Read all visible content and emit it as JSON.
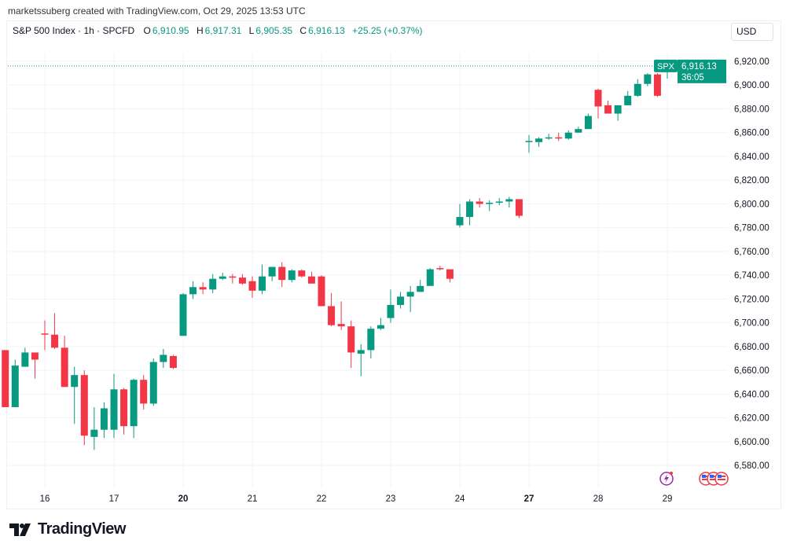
{
  "credit": "marketssuberg created with TradingView.com, Oct 29, 2025 13:53 UTC",
  "legend": {
    "symbol": "S&P 500 Index · 1h · SPCFD",
    "open_label": "O",
    "open": "6,910.95",
    "high_label": "H",
    "high": "6,917.31",
    "low_label": "L",
    "low": "6,905.35",
    "close_label": "C",
    "close": "6,916.13",
    "change": "+25.25 (+0.37%)"
  },
  "currency": "USD",
  "price_tag": {
    "symbol": "SPX",
    "price": "6,916.13",
    "countdown": "36:05"
  },
  "brand": "TradingView",
  "colors": {
    "up": "#089981",
    "down": "#f23645",
    "grid": "#f0f3fa",
    "event": "#9c27b0"
  },
  "events": [
    {
      "icon": "lightning-icon"
    },
    {
      "icon": "us-flag-icon"
    },
    {
      "icon": "us-flag-icon"
    },
    {
      "icon": "us-flag-icon"
    }
  ],
  "chart_data": {
    "type": "candlestick",
    "interval": "1h",
    "ylim": [
      6570,
      6930
    ],
    "yticks": [
      "6,580.00",
      "6,600.00",
      "6,620.00",
      "6,640.00",
      "6,660.00",
      "6,680.00",
      "6,700.00",
      "6,720.00",
      "6,740.00",
      "6,760.00",
      "6,780.00",
      "6,800.00",
      "6,820.00",
      "6,840.00",
      "6,860.00",
      "6,880.00",
      "6,900.00",
      "6,920.00"
    ],
    "grid": true,
    "days": [
      {
        "label": "",
        "bold": false,
        "candles": [
          [
            6677,
            6677,
            6629,
            6629
          ],
          [
            6629,
            6669,
            6629,
            6664
          ],
          [
            6663,
            6679,
            6663,
            6675
          ],
          [
            6675,
            6675,
            6653,
            6669
          ]
        ]
      },
      {
        "label": "16",
        "bold": false,
        "candles": [
          [
            6691,
            6702,
            6677,
            6690
          ],
          [
            6690,
            6708,
            6678,
            6679
          ],
          [
            6679,
            6689,
            6646,
            6646
          ],
          [
            6646,
            6663,
            6615,
            6656
          ],
          [
            6656,
            6660,
            6597,
            6605
          ],
          [
            6604,
            6629,
            6593,
            6610
          ],
          [
            6610,
            6633,
            6603,
            6628
          ]
        ]
      },
      {
        "label": "17",
        "bold": false,
        "candles": [
          [
            6610,
            6657,
            6603,
            6644
          ],
          [
            6644,
            6645,
            6606,
            6613
          ],
          [
            6613,
            6653,
            6603,
            6652
          ],
          [
            6652,
            6656,
            6627,
            6632
          ],
          [
            6632,
            6670,
            6630,
            6667
          ],
          [
            6667,
            6678,
            6662,
            6673
          ],
          [
            6672,
            6673,
            6661,
            6662
          ]
        ]
      },
      {
        "label": "20",
        "bold": true,
        "candles": [
          [
            6689,
            6725,
            6689,
            6724
          ],
          [
            6724,
            6735,
            6720,
            6730
          ],
          [
            6730,
            6734,
            6724,
            6728
          ],
          [
            6728,
            6741,
            6725,
            6737
          ],
          [
            6737,
            6742,
            6736,
            6739
          ],
          [
            6739,
            6741,
            6733,
            6738
          ],
          [
            6738,
            6741,
            6732,
            6733
          ]
        ]
      },
      {
        "label": "21",
        "bold": false,
        "candles": [
          [
            6735,
            6739,
            6721,
            6727
          ],
          [
            6727,
            6749,
            6724,
            6739
          ],
          [
            6739,
            6747,
            6735,
            6747
          ],
          [
            6747,
            6751,
            6730,
            6736
          ],
          [
            6736,
            6745,
            6734,
            6744
          ],
          [
            6744,
            6745,
            6738,
            6739
          ],
          [
            6739,
            6743,
            6733,
            6733
          ]
        ]
      },
      {
        "label": "22",
        "bold": false,
        "candles": [
          [
            6739,
            6740,
            6714,
            6714
          ],
          [
            6714,
            6725,
            6697,
            6698
          ],
          [
            6699,
            6718,
            6694,
            6697
          ],
          [
            6697,
            6702,
            6662,
            6675
          ],
          [
            6674,
            6682,
            6655,
            6677
          ],
          [
            6677,
            6697,
            6670,
            6695
          ],
          [
            6695,
            6704,
            6694,
            6698
          ]
        ]
      },
      {
        "label": "23",
        "bold": false,
        "candles": [
          [
            6704,
            6728,
            6700,
            6715
          ],
          [
            6715,
            6726,
            6712,
            6722
          ],
          [
            6722,
            6731,
            6709,
            6726
          ],
          [
            6726,
            6736,
            6726,
            6731
          ],
          [
            6731,
            6746,
            6731,
            6745
          ],
          [
            6746,
            6748,
            6744,
            6745
          ],
          [
            6745,
            6745,
            6734,
            6737
          ]
        ]
      },
      {
        "label": "24",
        "bold": false,
        "candles": [
          [
            6782,
            6800,
            6780,
            6789
          ],
          [
            6789,
            6804,
            6782,
            6802
          ],
          [
            6802,
            6805,
            6797,
            6800
          ],
          [
            6800,
            6803,
            6794,
            6801
          ],
          [
            6801,
            6805,
            6799,
            6802
          ],
          [
            6802,
            6806,
            6797,
            6804
          ],
          [
            6804,
            6804,
            6788,
            6790
          ]
        ]
      },
      {
        "label": "27",
        "bold": true,
        "candles": [
          [
            6852,
            6858,
            6843,
            6853
          ],
          [
            6852,
            6856,
            6848,
            6855
          ],
          [
            6855,
            6859,
            6854,
            6856
          ],
          [
            6856,
            6860,
            6853,
            6855
          ],
          [
            6855,
            6862,
            6854,
            6860
          ],
          [
            6860,
            6865,
            6860,
            6863
          ],
          [
            6863,
            6876,
            6863,
            6874
          ]
        ]
      },
      {
        "label": "28",
        "bold": false,
        "candles": [
          [
            6896,
            6897,
            6872,
            6882
          ],
          [
            6883,
            6887,
            6876,
            6876
          ],
          [
            6876,
            6883,
            6870,
            6883
          ],
          [
            6883,
            6895,
            6883,
            6891
          ],
          [
            6891,
            6905,
            6890,
            6901
          ],
          [
            6901,
            6910,
            6899,
            6909
          ],
          [
            6909,
            6910,
            6890,
            6891
          ]
        ]
      },
      {
        "label": "29",
        "bold": false,
        "candles": [
          [
            6910.95,
            6917.31,
            6905.35,
            6916.13
          ]
        ]
      }
    ],
    "last_price": 6916.13
  }
}
